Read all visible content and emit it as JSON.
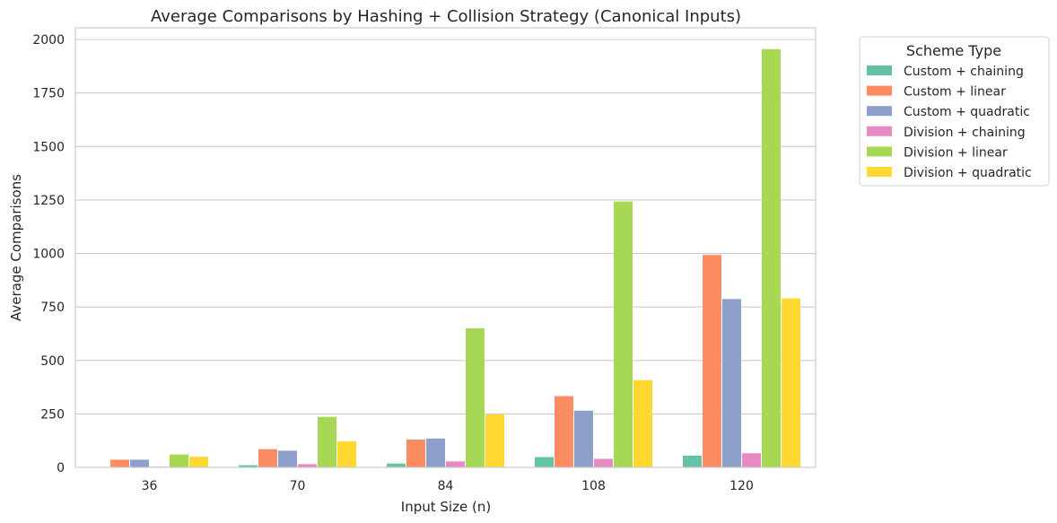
{
  "chart_data": {
    "type": "bar",
    "title": "Average Comparisons by Hashing + Collision Strategy (Canonical Inputs)",
    "xlabel": "Input Size (n)",
    "ylabel": "Average Comparisons",
    "categories": [
      "36",
      "70",
      "84",
      "108",
      "120"
    ],
    "ylim": [
      0,
      2055
    ],
    "yticks": [
      0,
      250,
      500,
      750,
      1000,
      1250,
      1500,
      1750,
      2000
    ],
    "grid": true,
    "legend": {
      "title": "Scheme Type",
      "placement": "outside-right"
    },
    "series": [
      {
        "name": "Custom + chaining",
        "color": "#66c2a5",
        "values": [
          2,
          10,
          18,
          48,
          55
        ]
      },
      {
        "name": "Custom + linear",
        "color": "#fc8d62",
        "values": [
          36,
          85,
          130,
          333,
          993
        ]
      },
      {
        "name": "Custom + quadratic",
        "color": "#8da0cb",
        "values": [
          36,
          78,
          135,
          265,
          787
        ]
      },
      {
        "name": "Division + chaining",
        "color": "#e78ac3",
        "values": [
          3,
          15,
          28,
          40,
          66
        ]
      },
      {
        "name": "Division + linear",
        "color": "#a6d854",
        "values": [
          60,
          236,
          650,
          1243,
          1955
        ]
      },
      {
        "name": "Division + quadratic",
        "color": "#ffd92f",
        "values": [
          50,
          122,
          248,
          408,
          790
        ]
      }
    ]
  }
}
